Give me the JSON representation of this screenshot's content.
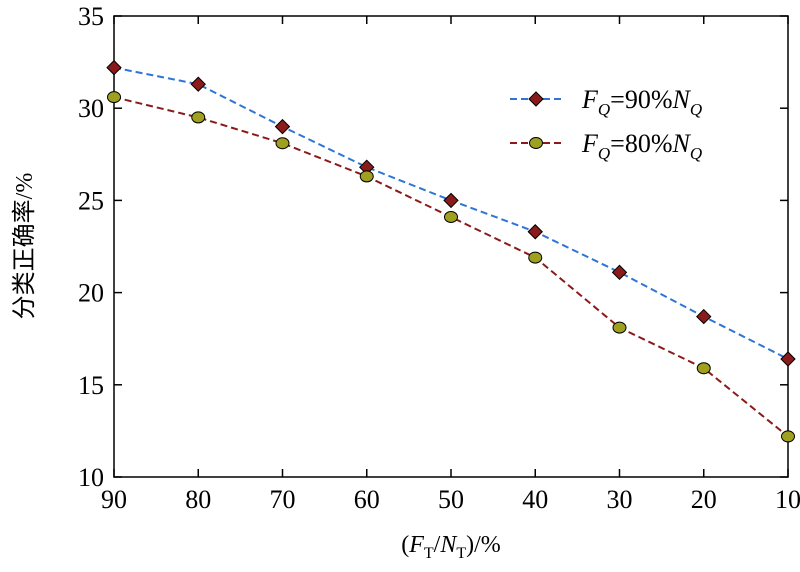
{
  "chart_data": {
    "type": "line",
    "xlabel": {
      "prefix": "(",
      "f_letter": "F",
      "f_sub": "T",
      "slash": "/",
      "n_letter": "N",
      "n_sub": "T",
      "suffix": ")/%"
    },
    "ylabel": "分类正确率/%",
    "x": [
      90,
      80,
      70,
      60,
      50,
      40,
      30,
      20,
      10
    ],
    "xlim": [
      90,
      10
    ],
    "ylim": [
      10,
      35
    ],
    "xticks": [
      90,
      80,
      70,
      60,
      50,
      40,
      30,
      20,
      10
    ],
    "yticks": [
      10,
      15,
      20,
      25,
      30,
      35
    ],
    "legend_position": "top-right",
    "series": [
      {
        "name": "FQ=90%NQ",
        "legend": {
          "f_letter": "F",
          "f_sub": "Q",
          "middle": "=90%",
          "n_letter": "N",
          "n_sub": "Q"
        },
        "values": [
          32.2,
          31.3,
          29.0,
          26.8,
          25.0,
          23.3,
          21.1,
          18.7,
          16.4
        ],
        "line_color": "#2E75D6",
        "marker": "diamond",
        "marker_color": "#8B1A1A"
      },
      {
        "name": "FQ=80%NQ",
        "legend": {
          "f_letter": "F",
          "f_sub": "Q",
          "middle": "=80%",
          "n_letter": "N",
          "n_sub": "Q"
        },
        "values": [
          30.6,
          29.5,
          28.1,
          26.3,
          24.1,
          21.9,
          18.1,
          15.9,
          12.2
        ],
        "line_color": "#8B1A1A",
        "marker": "circle",
        "marker_color": "#A0A020"
      }
    ]
  }
}
